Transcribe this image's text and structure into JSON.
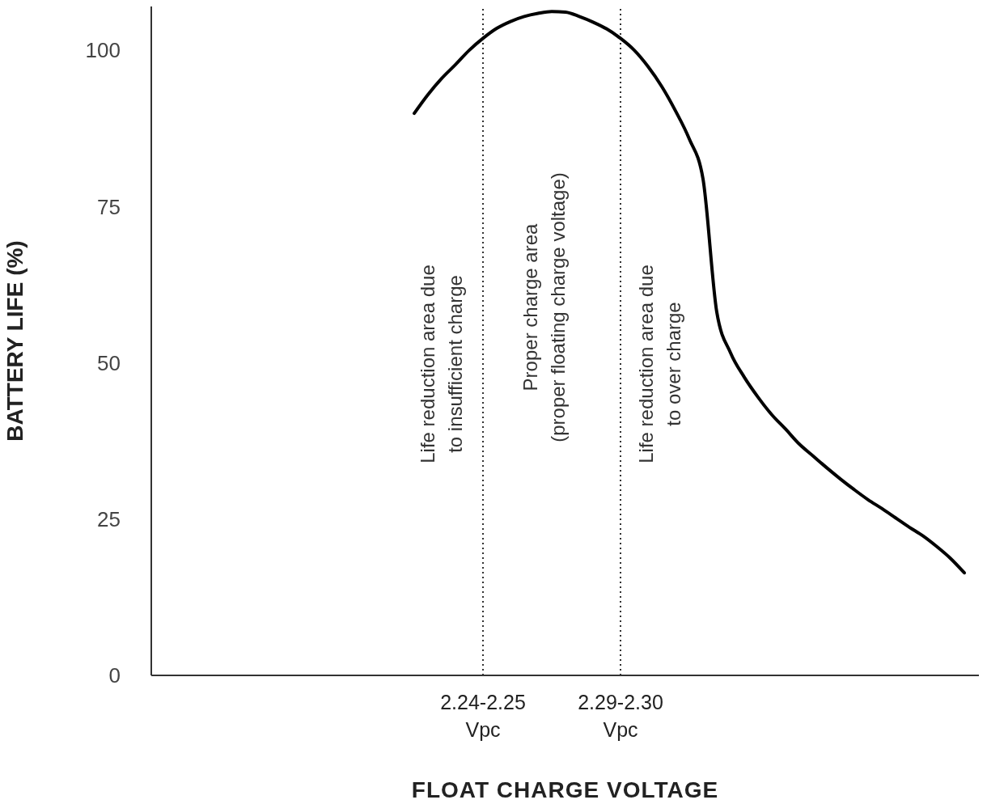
{
  "chart_data": {
    "type": "line",
    "xlabel": "FLOAT CHARGE VOLTAGE",
    "ylabel": "BATTERY LIFE (%)",
    "categories": [
      null,
      null,
      null,
      null,
      null,
      null,
      "2.24-2.25\nVpc",
      null,
      null,
      null,
      null,
      null,
      null,
      null,
      null,
      null,
      "2.29-2.30\nVpc",
      null,
      null,
      null,
      null,
      null,
      null,
      null,
      null,
      null,
      null,
      null,
      null,
      null,
      null,
      null,
      null,
      null,
      null,
      null,
      null,
      null,
      null,
      null,
      null,
      null
    ],
    "series": [
      {
        "color": "#000000",
        "values": [
          null,
          89.9,
          92.9,
          95.5,
          97.7,
          100,
          101.9,
          103.5,
          104.6,
          105.4,
          105.9,
          106.2,
          106.1,
          105.4,
          104.5,
          103.4,
          101.9,
          100,
          97.4,
          94.2,
          90.3,
          85.8,
          79.4,
          58.1,
          51.6,
          47.7,
          44.5,
          41.7,
          39.4,
          37,
          35.1,
          33.2,
          31.4,
          29.7,
          28.1,
          26.7,
          25.2,
          23.7,
          22.3,
          20.6,
          18.7,
          16.4
        ]
      }
    ],
    "ylim": [
      0,
      107
    ],
    "yticks": [
      0,
      25,
      50,
      75,
      100
    ],
    "grid": false,
    "legend": false,
    "marker": "none",
    "line_style": "solid",
    "ref_lines": [
      {
        "axis": "x",
        "value": "2.24-2.25\nVpc",
        "color": "#333333",
        "line_style": "dotted"
      },
      {
        "axis": "x",
        "value": "2.29-2.30\nVpc",
        "color": "#333333",
        "line_style": "dotted"
      }
    ],
    "annotations": [
      "Life reduction area due\nto insufficient charge",
      "Proper charge area\n(proper floating charge voltage)",
      "Life reduction area due\nto over charge"
    ]
  }
}
